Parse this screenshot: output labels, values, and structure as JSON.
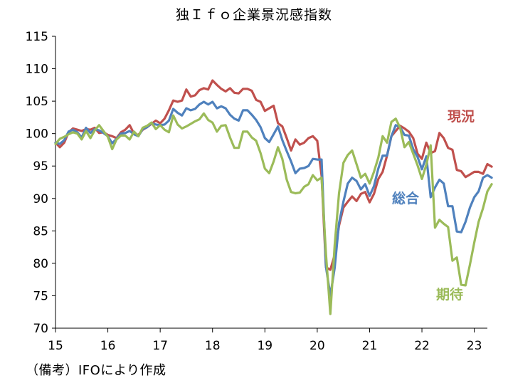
{
  "title": "独Ｉｆｏ企業景況感指数",
  "note": "（備考）IFOにより作成",
  "chart_data": {
    "type": "line",
    "title": "独Ｉｆｏ企業景況感指数",
    "xlabel": "",
    "ylabel": "",
    "ylim": [
      70,
      115
    ],
    "yticks": [
      70,
      75,
      80,
      85,
      90,
      95,
      100,
      105,
      110,
      115
    ],
    "xlim": [
      2015.0,
      2023.25
    ],
    "xticks": [
      {
        "value": 2015,
        "label": "15"
      },
      {
        "value": 2016,
        "label": "16"
      },
      {
        "value": 2017,
        "label": "17"
      },
      {
        "value": 2018,
        "label": "18"
      },
      {
        "value": 2019,
        "label": "19"
      },
      {
        "value": 2020,
        "label": "20"
      },
      {
        "value": 2021,
        "label": "21"
      },
      {
        "value": 2022,
        "label": "22"
      },
      {
        "value": 2023,
        "label": "23"
      }
    ],
    "x_start": 2015.0,
    "x_step": 0.0833333,
    "grid": false,
    "legend": "inline labels",
    "series": [
      {
        "name": "現況",
        "color": "#C0504D",
        "values": [
          98.6,
          97.9,
          98.6,
          100.2,
          100.8,
          100.6,
          100.4,
          100.7,
          100.6,
          100.9,
          100.1,
          100.2,
          99.8,
          99.6,
          99.3,
          100.2,
          100.6,
          101.3,
          100.0,
          99.8,
          100.6,
          101.0,
          101.5,
          102.0,
          101.6,
          102.3,
          103.6,
          105.1,
          104.9,
          105.1,
          106.8,
          105.7,
          105.9,
          106.7,
          107.0,
          106.8,
          108.2,
          107.5,
          106.9,
          106.5,
          107.0,
          106.3,
          106.2,
          106.9,
          106.9,
          106.6,
          105.2,
          104.9,
          103.5,
          103.9,
          104.3,
          101.6,
          101.1,
          99.3,
          97.4,
          99.1,
          98.3,
          98.6,
          99.3,
          99.6,
          98.9,
          93.5,
          79.4,
          79.0,
          81.3,
          85.8,
          88.6,
          89.5,
          90.3,
          89.6,
          90.7,
          91.0,
          89.4,
          90.7,
          93.0,
          94.1,
          96.6,
          99.6,
          100.4,
          101.2,
          100.8,
          100.3,
          99.3,
          96.9,
          96.1,
          98.6,
          97.0,
          97.3,
          100.1,
          99.3,
          97.8,
          97.5,
          94.4,
          94.2,
          93.3,
          93.7,
          94.1,
          94.1,
          93.8,
          95.3,
          94.9
        ]
      },
      {
        "name": "総合",
        "color": "#4F81BD",
        "values": [
          98.6,
          98.4,
          99.0,
          100.3,
          100.6,
          100.2,
          99.4,
          100.9,
          100.1,
          100.7,
          100.5,
          100.1,
          99.6,
          98.5,
          99.2,
          100.0,
          100.1,
          100.4,
          99.9,
          99.6,
          100.7,
          101.0,
          101.6,
          101.4,
          101.3,
          101.4,
          102.0,
          103.8,
          103.2,
          102.8,
          103.9,
          103.6,
          103.8,
          104.5,
          104.9,
          104.5,
          104.9,
          103.9,
          104.2,
          103.9,
          102.9,
          102.3,
          102.0,
          103.6,
          103.6,
          102.9,
          102.1,
          101.0,
          99.3,
          98.7,
          99.9,
          101.1,
          99.0,
          97.3,
          95.7,
          93.9,
          94.6,
          94.7,
          95.0,
          96.1,
          96.0,
          96.0,
          79.5,
          75.0,
          79.3,
          86.2,
          89.5,
          92.3,
          93.2,
          92.7,
          91.4,
          92.2,
          90.4,
          91.9,
          94.6,
          96.6,
          96.6,
          99.6,
          101.3,
          101.0,
          99.8,
          99.7,
          97.6,
          96.4,
          94.5,
          96.5,
          90.2,
          91.7,
          92.9,
          92.3,
          88.8,
          88.8,
          84.9,
          84.8,
          86.4,
          88.6,
          90.2,
          91.1,
          93.2,
          93.6,
          93.2
        ]
      },
      {
        "name": "期待",
        "color": "#9BBB59",
        "values": [
          98.4,
          99.2,
          99.5,
          99.9,
          100.2,
          100.0,
          99.1,
          100.4,
          99.3,
          100.5,
          101.3,
          100.4,
          99.5,
          97.6,
          99.1,
          99.7,
          99.7,
          99.1,
          100.3,
          99.6,
          100.9,
          101.2,
          101.7,
          100.7,
          101.3,
          100.6,
          100.2,
          102.8,
          101.4,
          100.8,
          101.1,
          101.5,
          101.9,
          102.2,
          103.1,
          102.1,
          101.7,
          100.3,
          101.2,
          101.3,
          99.4,
          97.8,
          97.8,
          100.3,
          100.3,
          99.4,
          98.9,
          97.0,
          94.6,
          93.9,
          95.7,
          97.9,
          96.1,
          92.9,
          91.0,
          90.8,
          90.9,
          91.8,
          92.2,
          93.6,
          92.8,
          93.2,
          81.5,
          72.2,
          82.8,
          90.8,
          95.5,
          96.7,
          97.4,
          95.3,
          93.2,
          93.8,
          92.3,
          94.1,
          96.3,
          99.6,
          98.6,
          101.8,
          102.3,
          100.9,
          97.9,
          98.7,
          96.9,
          95.1,
          93.0,
          95.2,
          98.2,
          85.5,
          86.7,
          86.1,
          85.6,
          80.4,
          80.9,
          76.7,
          76.6,
          79.8,
          83.2,
          86.4,
          88.5,
          91.1,
          92.2
        ]
      }
    ],
    "series_labels": [
      {
        "name": "現況"
      },
      {
        "name": "総合"
      },
      {
        "name": "期待"
      }
    ]
  }
}
